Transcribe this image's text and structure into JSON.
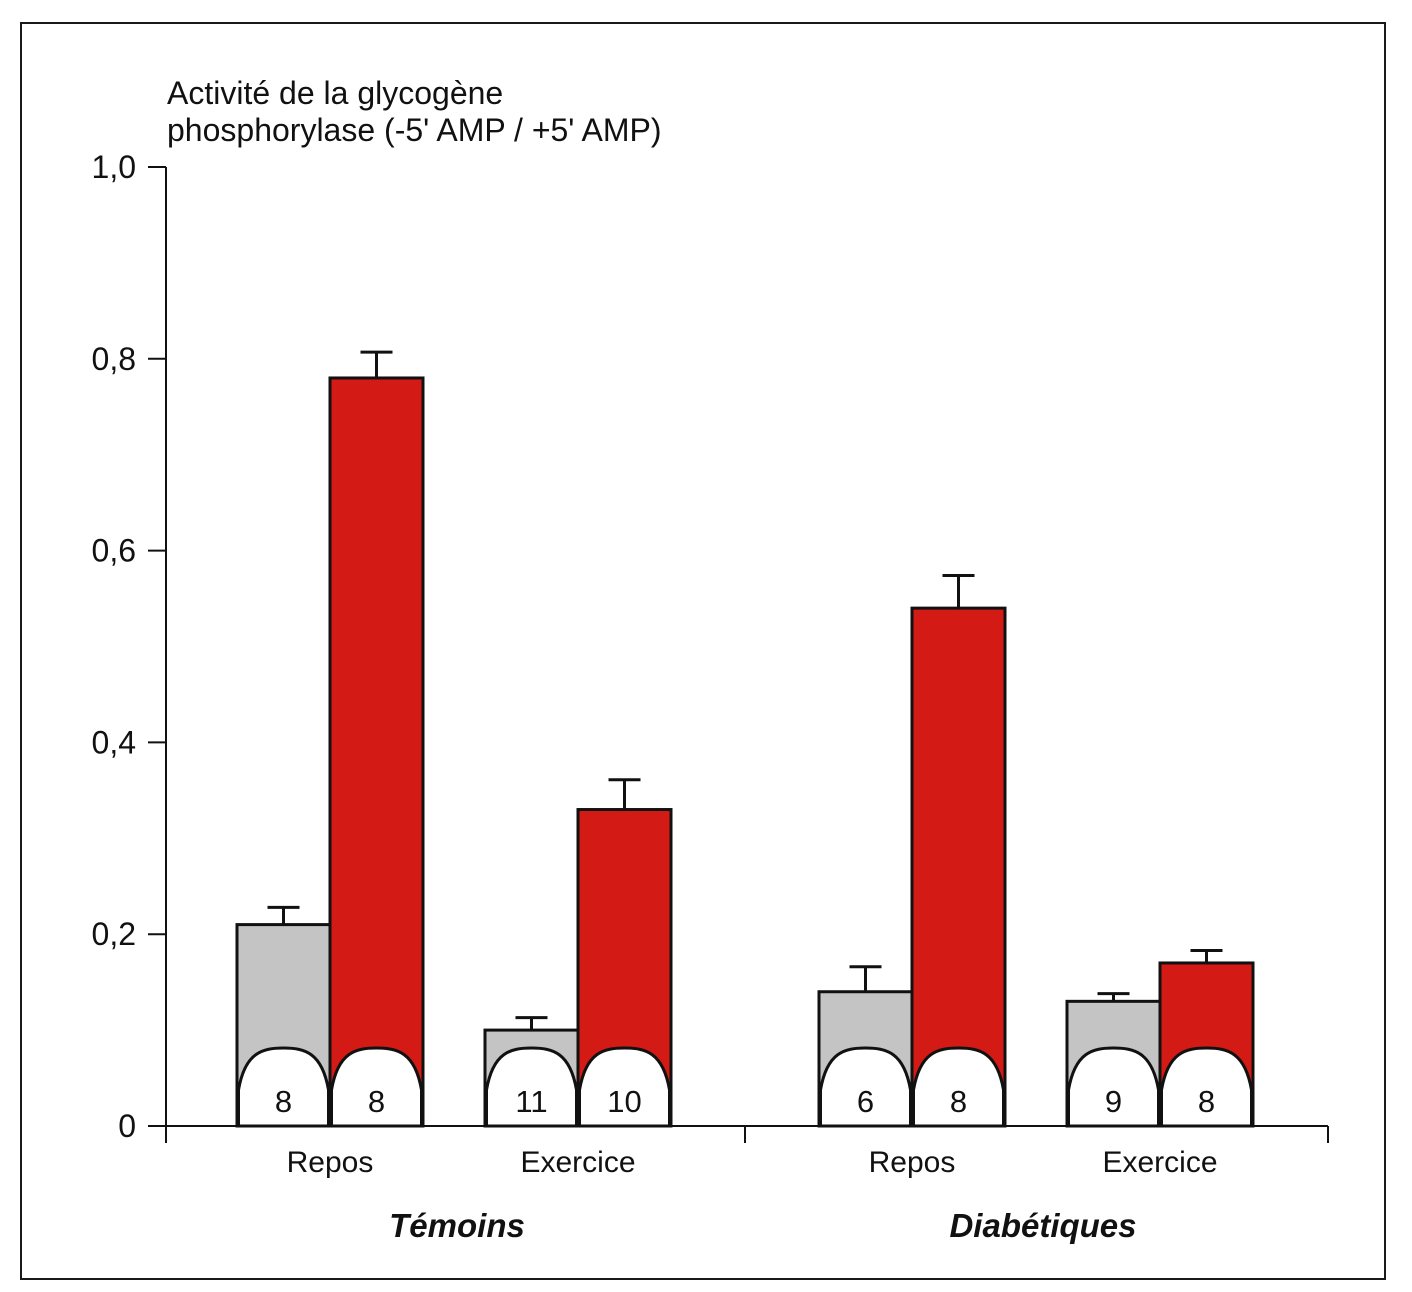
{
  "chart_data": {
    "type": "bar",
    "ylabel_lines": [
      "Activité de la glycogène",
      "phosphorylase (-5' AMP / +5' AMP)"
    ],
    "ylim": [
      0,
      1.0
    ],
    "yticks": [
      {
        "value": 0,
        "label": "0"
      },
      {
        "value": 0.2,
        "label": "0,2"
      },
      {
        "value": 0.4,
        "label": "0,4"
      },
      {
        "value": 0.6,
        "label": "0,6"
      },
      {
        "value": 0.8,
        "label": "0,8"
      },
      {
        "value": 1.0,
        "label": "1,0"
      }
    ],
    "colors": {
      "gray": "#c4c4c4",
      "red": "#d41a14",
      "outline": "#111111"
    },
    "groups": [
      {
        "label": "Témoins",
        "categories": [
          {
            "label": "Repos",
            "bars": [
              {
                "color": "gray",
                "value": 0.21,
                "error": 0.018,
                "n": "8"
              },
              {
                "color": "red",
                "value": 0.78,
                "error": 0.027,
                "n": "8"
              }
            ]
          },
          {
            "label": "Exercice",
            "bars": [
              {
                "color": "gray",
                "value": 0.1,
                "error": 0.013,
                "n": "11"
              },
              {
                "color": "red",
                "value": 0.33,
                "error": 0.031,
                "n": "10"
              }
            ]
          }
        ]
      },
      {
        "label": "Diabétiques",
        "categories": [
          {
            "label": "Repos",
            "bars": [
              {
                "color": "gray",
                "value": 0.14,
                "error": 0.026,
                "n": "6"
              },
              {
                "color": "red",
                "value": 0.54,
                "error": 0.034,
                "n": "8"
              }
            ]
          },
          {
            "label": "Exercice",
            "bars": [
              {
                "color": "gray",
                "value": 0.13,
                "error": 0.008,
                "n": "9"
              },
              {
                "color": "red",
                "value": 0.17,
                "error": 0.013,
                "n": "8"
              }
            ]
          }
        ]
      }
    ]
  }
}
